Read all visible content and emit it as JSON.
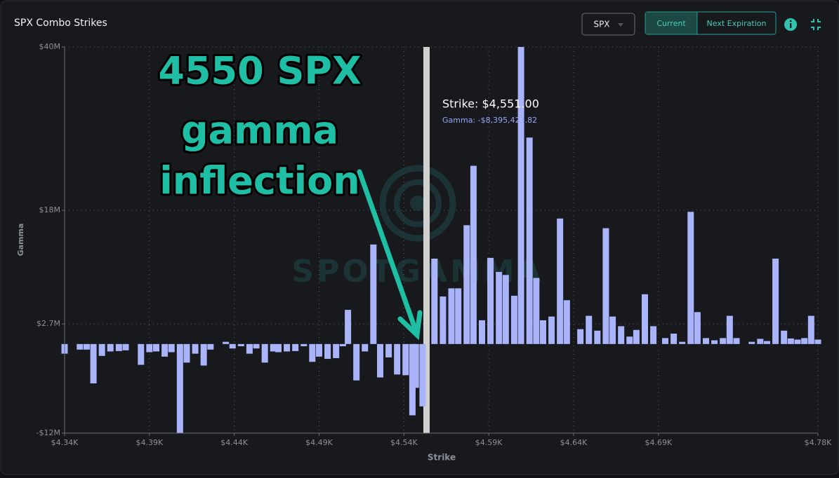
{
  "header": {
    "title": "SPX Combo Strikes",
    "symbol": "SPX",
    "buttons": [
      "Current",
      "Next Expiration"
    ]
  },
  "chart_data": {
    "type": "bar",
    "x": [
      4340,
      4349,
      4353,
      4357,
      4362,
      4367,
      4372,
      4376,
      4385,
      4390,
      4394,
      4399,
      4403,
      4408,
      4412,
      4417,
      4422,
      4426,
      4435,
      4439,
      4444,
      4449,
      4453,
      4458,
      4463,
      4466,
      4471,
      4476,
      4481,
      4486,
      4490,
      4495,
      4500,
      4504,
      4507,
      4512,
      4517,
      4522,
      4526,
      4531,
      4536,
      4541,
      4545,
      4547,
      4551,
      4558,
      4563,
      4568,
      4572,
      4577,
      4581,
      4586,
      4591,
      4596,
      4600,
      4605,
      4609,
      4614,
      4618,
      4622,
      4627,
      4632,
      4636,
      4644,
      4649,
      4654,
      4659,
      4663,
      4668,
      4673,
      4677,
      4682,
      4687,
      4694,
      4699,
      4704,
      4709,
      4713,
      4718,
      4723,
      4728,
      4732,
      4736,
      4745,
      4750,
      4754,
      4759,
      4764,
      4768,
      4772,
      4776,
      4780,
      4784
    ],
    "values": [
      -1300000,
      -750000,
      -750000,
      -5300000,
      -1600000,
      -1000000,
      -950000,
      -850000,
      -2800000,
      -1100000,
      -1000000,
      -1700000,
      -1100000,
      -12000000,
      -2500000,
      -1300000,
      -2900000,
      -750000,
      300000,
      -600000,
      -300000,
      -1300000,
      -600000,
      -2500000,
      -1000000,
      -1100000,
      -1000000,
      -950000,
      -300000,
      -2400000,
      -1700000,
      -2000000,
      -1900000,
      -300000,
      4600000,
      -4900000,
      -1000000,
      13400000,
      -4500000,
      -1800000,
      -4100000,
      -4200000,
      -9600000,
      -5900000,
      -8395423.82,
      11500000,
      6400000,
      7500000,
      7500000,
      16000000,
      24000000,
      3200000,
      11600000,
      9700000,
      9300000,
      6500000,
      40000000,
      27800000,
      8900000,
      3200000,
      3700000,
      16900000,
      5900000,
      2000000,
      3800000,
      1800000,
      15600000,
      3700000,
      2400000,
      1000000,
      1900000,
      6700000,
      2400000,
      800000,
      1400000,
      300000,
      17800000,
      4300000,
      800000,
      500000,
      800000,
      3800000,
      800000,
      300000,
      700000,
      400000,
      11500000,
      1800000,
      750000,
      600000,
      800000,
      3800000,
      600000
    ],
    "color": "#a9b4fa",
    "xlim": [
      4340,
      4784
    ],
    "xticks": [
      {
        "value": 4340,
        "label": "$4.34K"
      },
      {
        "value": 4390,
        "label": "$4.39K"
      },
      {
        "value": 4440,
        "label": "$4.44K"
      },
      {
        "value": 4490,
        "label": "$4.49K"
      },
      {
        "value": 4540,
        "label": "$4.54K"
      },
      {
        "value": 4590,
        "label": "$4.59K"
      },
      {
        "value": 4640,
        "label": "$4.64K"
      },
      {
        "value": 4690,
        "label": "$4.69K"
      },
      {
        "value": 4784,
        "label": "$4.78K"
      }
    ],
    "ylim": [
      -12000000,
      40000000
    ],
    "yticks": [
      {
        "value": -12000000,
        "label": "-$12M"
      },
      {
        "value": 2700000,
        "label": "$2.7M"
      },
      {
        "value": 18000000,
        "label": "$18M"
      },
      {
        "value": 40000000,
        "label": "$40M"
      }
    ],
    "xlabel": "Strike",
    "ylabel": "Gamma",
    "grid": true,
    "annotation": [
      "4550 SPX",
      "gamma",
      "inflection"
    ],
    "tooltip": [
      "Strike: $4,551.00",
      "Gamma: -$8,395,423.82"
    ],
    "watermark": "SPOTGAMMA"
  }
}
